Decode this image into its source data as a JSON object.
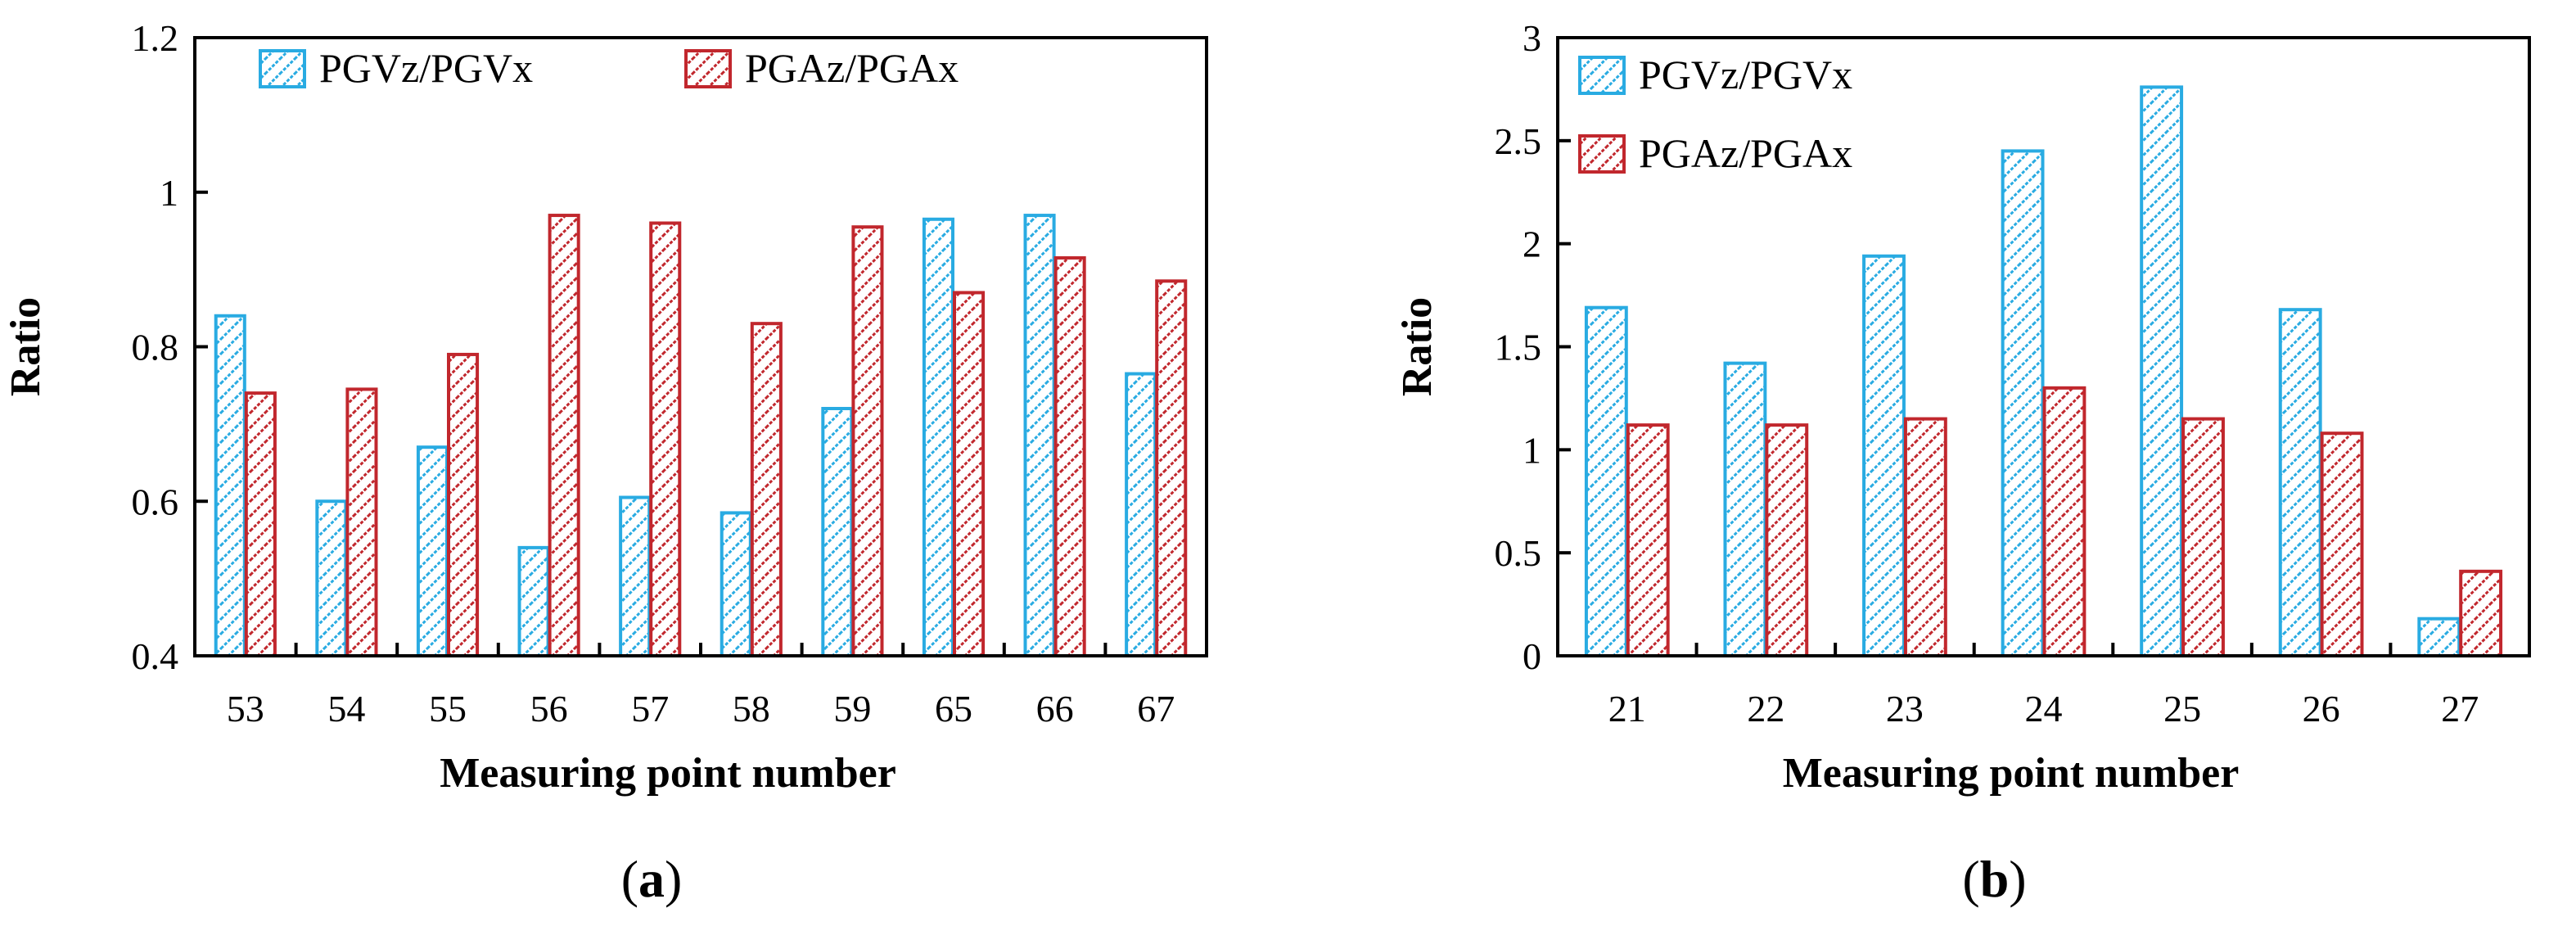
{
  "chart_data": [
    {
      "panel": "(a)",
      "caption_letter": "a",
      "type": "bar",
      "title": "",
      "xlabel": "Measuring point number",
      "ylabel": "Ratio",
      "ylim": [
        0.4,
        1.2
      ],
      "yticks": [
        0.4,
        0.6,
        0.8,
        1.0,
        1.2
      ],
      "ytick_labels": [
        "0.4",
        "0.6",
        "0.8",
        "1",
        "1.2"
      ],
      "legend_position": "top-left, horizontal",
      "categories": [
        "53",
        "54",
        "55",
        "56",
        "57",
        "58",
        "59",
        "65",
        "66",
        "67"
      ],
      "series": [
        {
          "name": "PGVz/PGVx",
          "color": "#29ABE2",
          "values": [
            0.84,
            0.6,
            0.67,
            0.54,
            0.605,
            0.585,
            0.72,
            0.965,
            0.97,
            0.765
          ]
        },
        {
          "name": "PGAz/PGAx",
          "color": "#C1272D",
          "values": [
            0.74,
            0.745,
            0.79,
            0.97,
            0.96,
            0.83,
            0.955,
            0.87,
            0.915,
            0.885
          ]
        }
      ]
    },
    {
      "panel": "(b)",
      "caption_letter": "b",
      "type": "bar",
      "title": "",
      "xlabel": "Measuring point number",
      "ylabel": "Ratio",
      "ylim": [
        0,
        3
      ],
      "yticks": [
        0,
        0.5,
        1,
        1.5,
        2,
        2.5,
        3
      ],
      "ytick_labels": [
        "0",
        "0.5",
        "1",
        "1.5",
        "2",
        "2.5",
        "3"
      ],
      "legend_position": "top-left, vertical",
      "categories": [
        "21",
        "22",
        "23",
        "24",
        "25",
        "26",
        "27"
      ],
      "series": [
        {
          "name": "PGVz/PGVx",
          "color": "#29ABE2",
          "values": [
            1.69,
            1.42,
            1.94,
            2.45,
            2.76,
            1.68,
            0.18
          ]
        },
        {
          "name": "PGAz/PGAx",
          "color": "#C1272D",
          "values": [
            1.12,
            1.12,
            1.15,
            1.3,
            1.15,
            1.08,
            0.41
          ]
        }
      ]
    }
  ]
}
